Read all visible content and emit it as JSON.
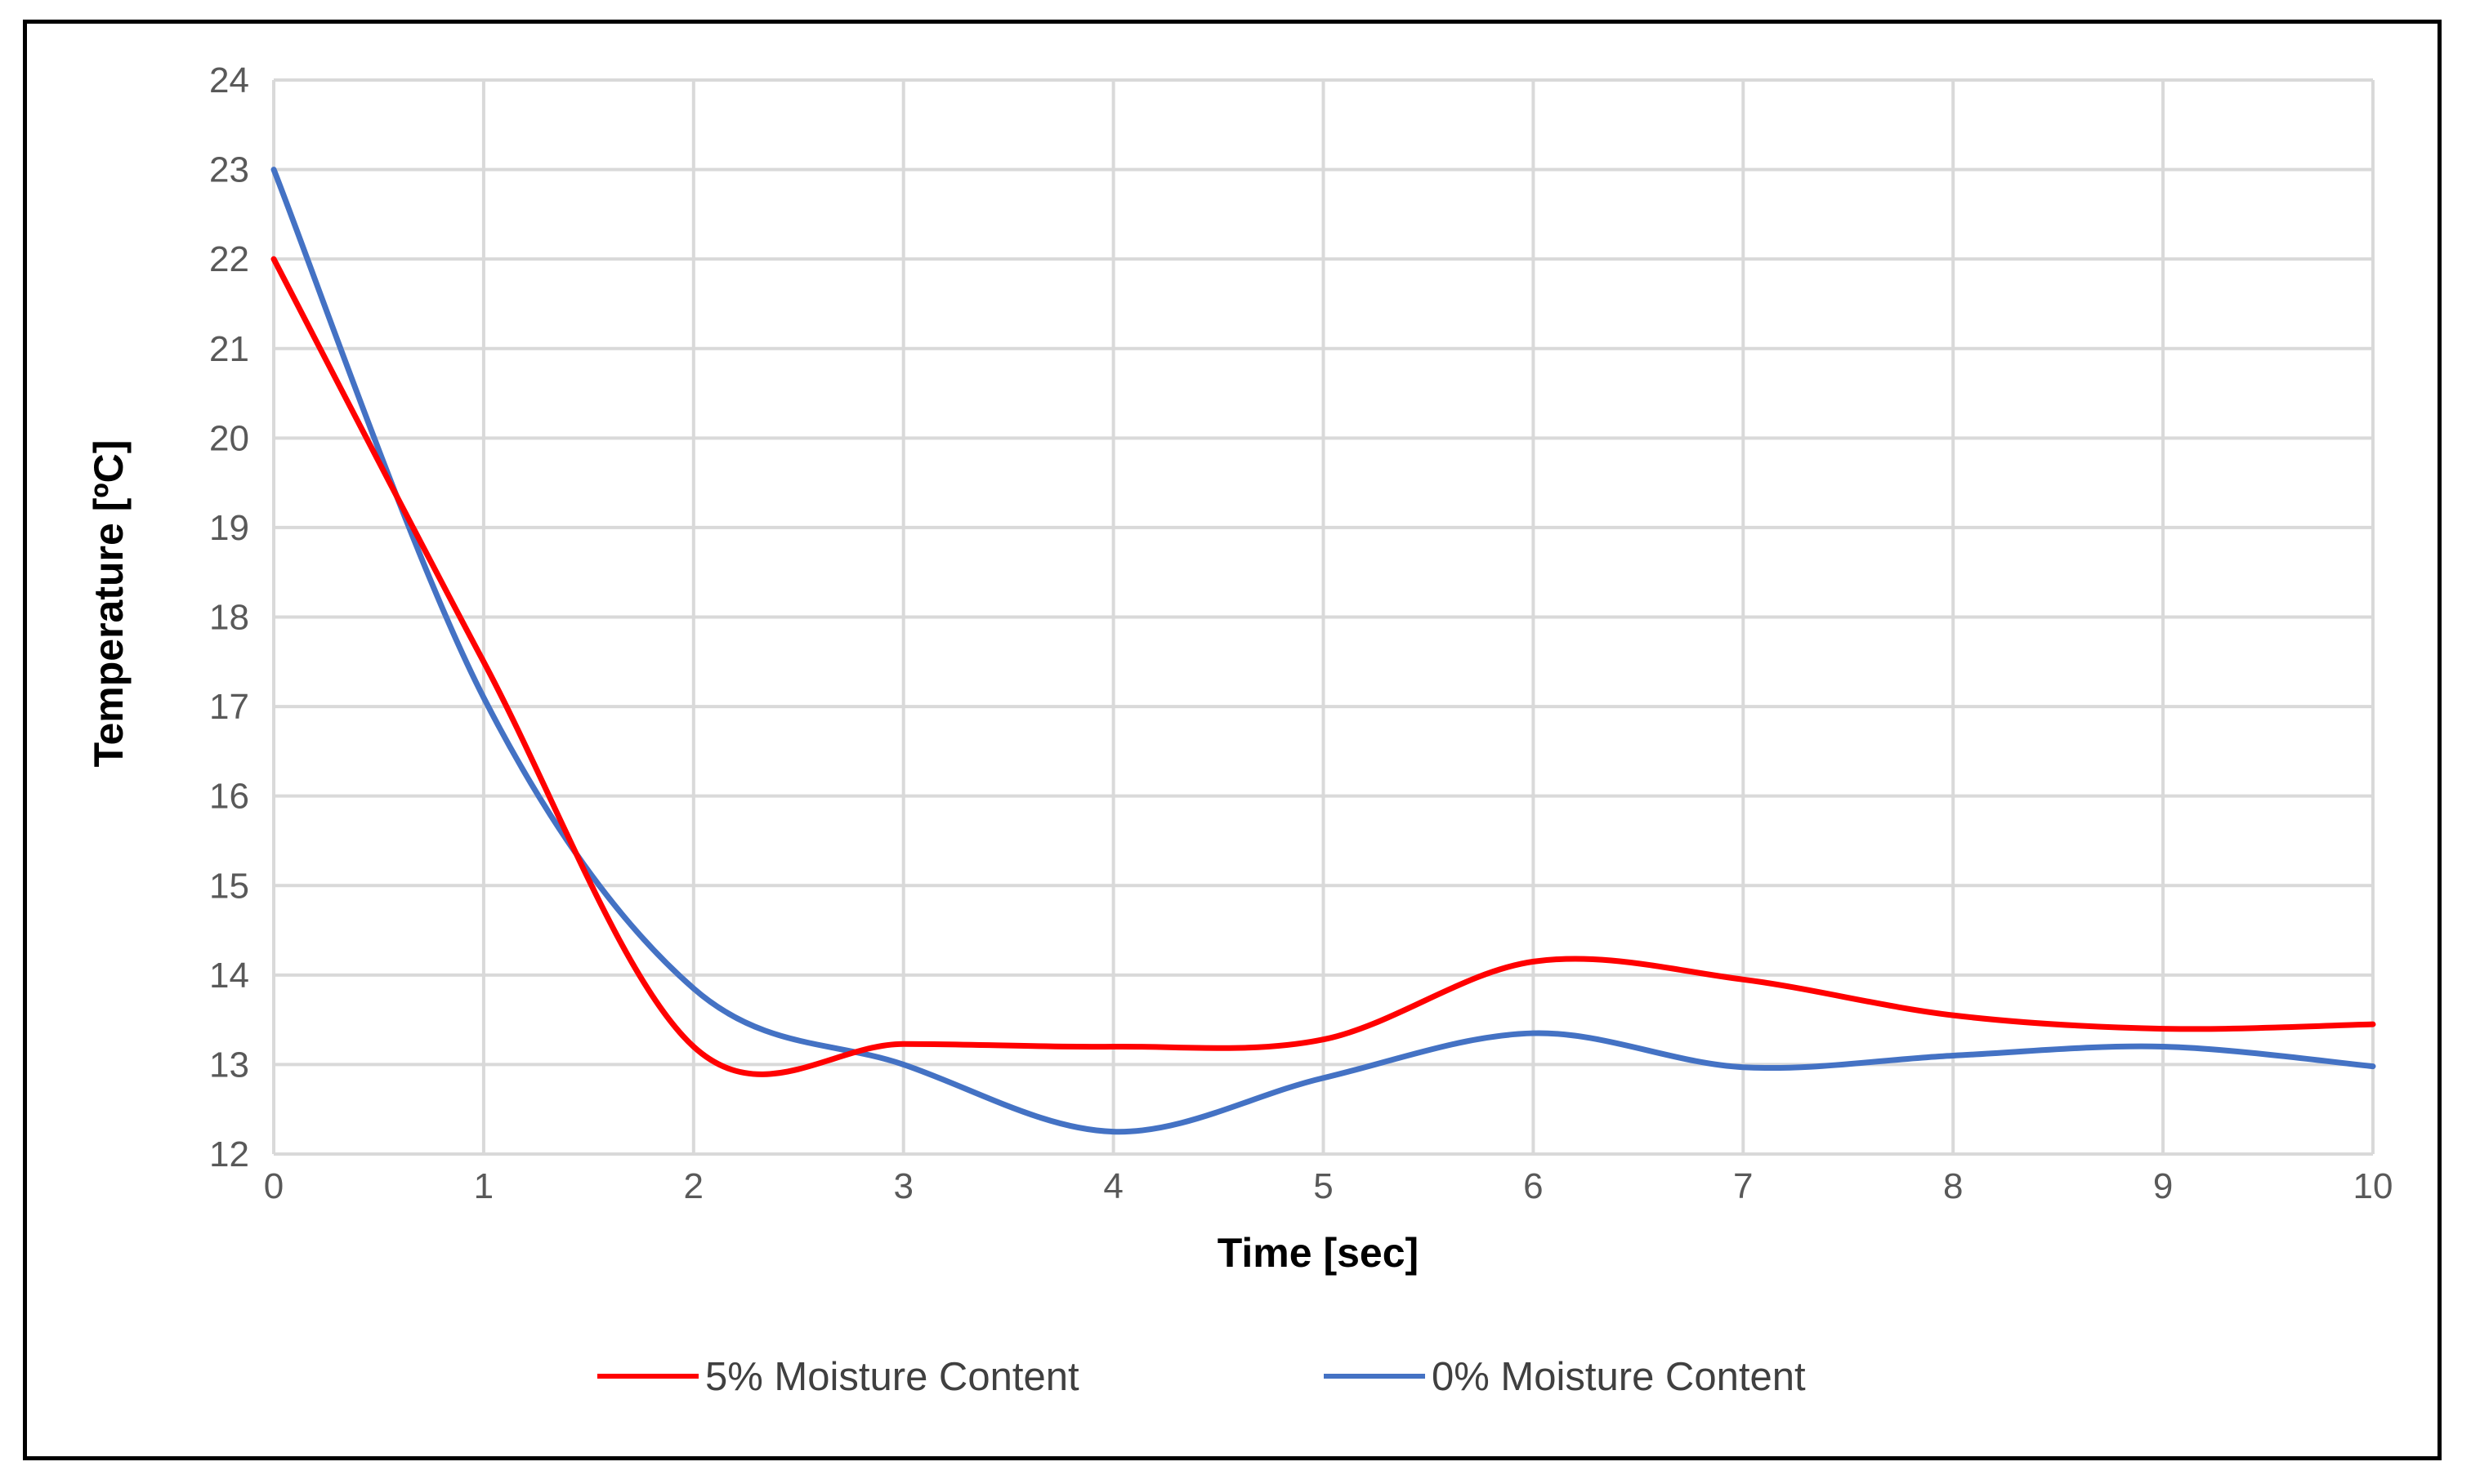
{
  "chart_data": {
    "type": "line",
    "title": "",
    "xlabel": "Time [sec]",
    "ylabel": "Temperature [ºC]",
    "xlim": [
      0,
      10
    ],
    "ylim": [
      12,
      24
    ],
    "x_ticks": [
      "0",
      "1",
      "2",
      "3",
      "4",
      "5",
      "6",
      "7",
      "8",
      "9",
      "10"
    ],
    "y_ticks": [
      "12",
      "13",
      "14",
      "15",
      "16",
      "17",
      "18",
      "19",
      "20",
      "21",
      "22",
      "23",
      "24"
    ],
    "grid": true,
    "smooth": true,
    "legend_position": "bottom",
    "x": [
      0,
      1,
      2,
      3,
      4,
      5,
      6,
      7,
      8,
      9,
      10
    ],
    "series": [
      {
        "name": "5% Moisture Content",
        "color": "#ff0000",
        "values": [
          22.0,
          17.5,
          13.2,
          13.23,
          13.2,
          13.28,
          14.15,
          13.95,
          13.55,
          13.4,
          13.45
        ]
      },
      {
        "name": "0% Moisture Content",
        "color": "#4472c4",
        "values": [
          23.0,
          17.1,
          13.85,
          13.0,
          12.25,
          12.85,
          13.35,
          12.97,
          13.1,
          13.2,
          12.98
        ]
      }
    ]
  }
}
